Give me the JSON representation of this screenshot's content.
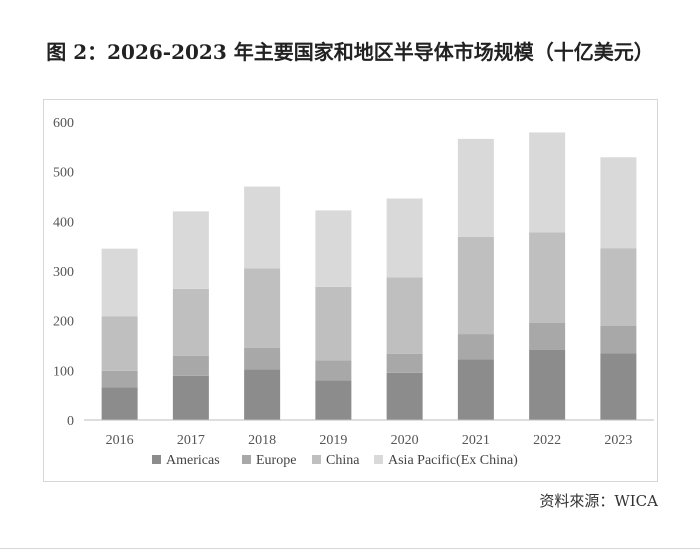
{
  "page": {
    "title": "图 2：2026-2023 年主要国家和地区半导体市场规模（十亿美元）",
    "source": "资料來源：WICA"
  },
  "chart_data": {
    "type": "bar",
    "stacked": true,
    "title": "图 2：2026-2023 年主要国家和地区半导体市场规模（十亿美元）",
    "xlabel": "",
    "ylabel": "",
    "ylim": [
      0,
      600
    ],
    "yticks": [
      0,
      100,
      200,
      300,
      400,
      500,
      600
    ],
    "grid": false,
    "legend_position": "bottom",
    "categories": [
      "2016",
      "2017",
      "2018",
      "2019",
      "2020",
      "2021",
      "2022",
      "2023"
    ],
    "series": [
      {
        "name": "Americas",
        "color": "#8c8c8c",
        "values": [
          66,
          89,
          102,
          80,
          95,
          122,
          141,
          134
        ]
      },
      {
        "name": "Europe",
        "color": "#a8a8a8",
        "values": [
          33,
          40,
          43,
          40,
          38,
          51,
          55,
          56
        ]
      },
      {
        "name": "China",
        "color": "#bfbfbf",
        "values": [
          110,
          135,
          160,
          148,
          154,
          196,
          182,
          156
        ]
      },
      {
        "name": "Asia Pacific(Ex China)",
        "color": "#d9d9d9",
        "values": [
          136,
          156,
          165,
          154,
          159,
          197,
          201,
          183
        ]
      }
    ]
  }
}
